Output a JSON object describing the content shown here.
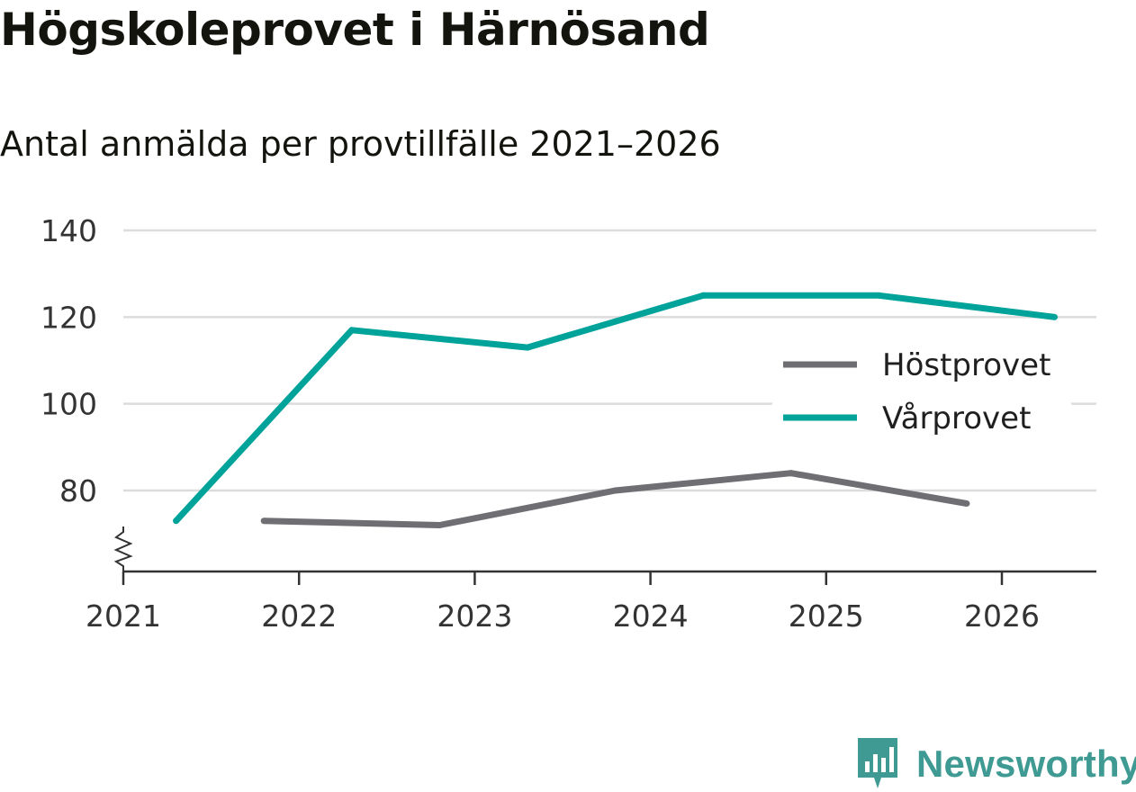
{
  "chart_data": {
    "type": "line",
    "title": "Högskoleprovet i Härnösand",
    "subtitle": "Antal anmälda per provtillfälle 2021–2026",
    "xlabel": "",
    "ylabel": "",
    "x_ticks": [
      "2021",
      "2022",
      "2023",
      "2024",
      "2025",
      "2026"
    ],
    "y_ticks": [
      "80",
      "100",
      "120",
      "140"
    ],
    "xlim": [
      2021,
      2026.55
    ],
    "ylim": [
      62,
      140
    ],
    "grid": true,
    "legend_position": "right",
    "series": [
      {
        "name": "Höstprovet",
        "color": "#6e6e73",
        "points": [
          {
            "x": 2021.8,
            "y": 73
          },
          {
            "x": 2022.8,
            "y": 72
          },
          {
            "x": 2023.8,
            "y": 80
          },
          {
            "x": 2024.8,
            "y": 84
          },
          {
            "x": 2025.8,
            "y": 77
          }
        ]
      },
      {
        "name": "Vårprovet",
        "color": "#00a39a",
        "points": [
          {
            "x": 2021.3,
            "y": 73
          },
          {
            "x": 2022.3,
            "y": 117
          },
          {
            "x": 2023.3,
            "y": 113
          },
          {
            "x": 2024.3,
            "y": 125
          },
          {
            "x": 2025.3,
            "y": 125
          },
          {
            "x": 2026.3,
            "y": 120
          }
        ]
      }
    ]
  },
  "branding": {
    "name": "Newsworthy",
    "color": "#3e9a92",
    "icon": "newsworthy-logo-icon"
  }
}
